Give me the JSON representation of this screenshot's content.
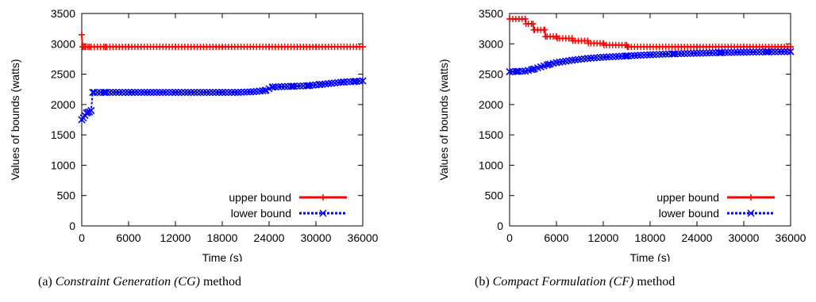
{
  "chart_data": [
    {
      "type": "line",
      "xlabel": "Time (s)",
      "ylabel": "Values of bounds (watts)",
      "xlim": [
        0,
        36000
      ],
      "ylim": [
        0,
        3500
      ],
      "xticks": [
        0,
        6000,
        12000,
        18000,
        24000,
        30000,
        36000
      ],
      "yticks": [
        0,
        500,
        1000,
        1500,
        2000,
        2500,
        3000,
        3500
      ],
      "legend_position": "bottom-right",
      "caption": {
        "prefix": "(a)",
        "title": "Constraint Generation (CG)",
        "suffix": "method"
      },
      "series": [
        {
          "name": "upper bound",
          "color": "#ff0000",
          "marker": "plus",
          "x": [
            0,
            100,
            200,
            500,
            1000,
            3000,
            6000,
            12000,
            18000,
            24000,
            30000,
            36000
          ],
          "y": [
            3150,
            2950,
            2950,
            2950,
            2950,
            2950,
            2950,
            2950,
            2950,
            2950,
            2950,
            2950
          ]
        },
        {
          "name": "lower bound",
          "color": "#0000ff",
          "marker": "cross",
          "x": [
            0,
            200,
            400,
            600,
            800,
            1000,
            1200,
            1400,
            3000,
            6000,
            12000,
            18000,
            20000,
            22000,
            23500,
            24500,
            27000,
            29000,
            30500,
            32000,
            33500,
            35000,
            36000
          ],
          "y": [
            1750,
            1780,
            1820,
            1860,
            1870,
            1880,
            1900,
            2200,
            2200,
            2200,
            2200,
            2200,
            2200,
            2210,
            2230,
            2290,
            2300,
            2310,
            2330,
            2350,
            2370,
            2380,
            2390
          ]
        }
      ]
    },
    {
      "type": "line",
      "xlabel": "Time (s)",
      "ylabel": "Values of bounds (watts)",
      "xlim": [
        0,
        36000
      ],
      "ylim": [
        0,
        3500
      ],
      "xticks": [
        0,
        6000,
        12000,
        18000,
        24000,
        30000,
        36000
      ],
      "yticks": [
        0,
        500,
        1000,
        1500,
        2000,
        2500,
        3000,
        3500
      ],
      "legend_position": "bottom-right",
      "caption": {
        "prefix": "(b)",
        "title": "Compact Formulation (CF)",
        "suffix": "method"
      },
      "series": [
        {
          "name": "upper bound",
          "color": "#ff0000",
          "marker": "plus",
          "x": [
            0,
            2000,
            2100,
            3000,
            3100,
            4500,
            4600,
            6000,
            6100,
            8000,
            8100,
            10000,
            10100,
            12000,
            12100,
            15000,
            15100,
            24000,
            30000,
            36000
          ],
          "y": [
            3410,
            3410,
            3330,
            3330,
            3230,
            3230,
            3120,
            3120,
            3090,
            3090,
            3050,
            3050,
            3010,
            3010,
            2980,
            2980,
            2950,
            2950,
            2950,
            2950
          ]
        },
        {
          "name": "lower bound",
          "color": "#0000ff",
          "marker": "cross",
          "x": [
            0,
            1000,
            2000,
            3000,
            4000,
            5000,
            6000,
            8000,
            10000,
            12000,
            15000,
            18000,
            21000,
            24000,
            27000,
            30000,
            33000,
            36000
          ],
          "y": [
            2540,
            2545,
            2550,
            2580,
            2620,
            2660,
            2690,
            2730,
            2760,
            2780,
            2800,
            2820,
            2835,
            2845,
            2855,
            2862,
            2868,
            2872
          ]
        }
      ]
    }
  ]
}
